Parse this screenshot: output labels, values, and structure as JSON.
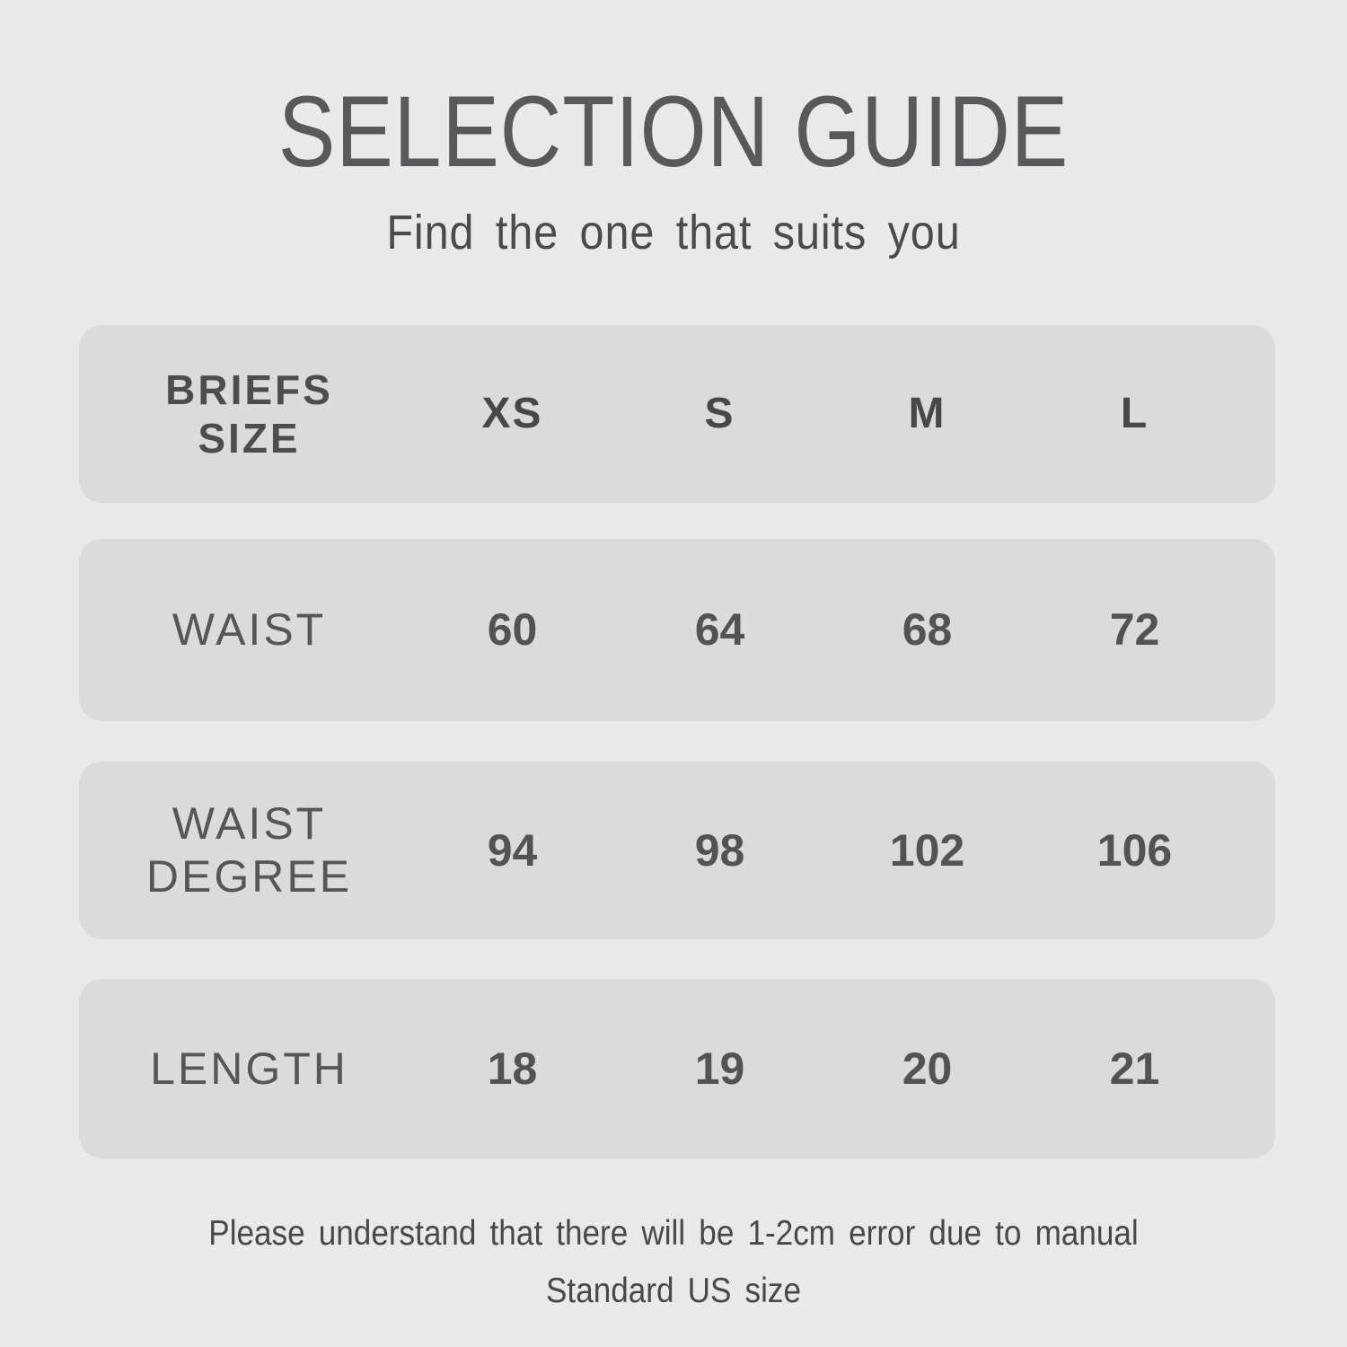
{
  "page": {
    "title": "SELECTION GUIDE",
    "subtitle": "Find the one that suits you",
    "note_error": "Please understand that there will be 1-2cm error due to manual",
    "note_standard": "Standard US size"
  },
  "table": {
    "header": {
      "label": "BRIEFS\nSIZE",
      "columns": [
        "XS",
        "S",
        "M",
        "L"
      ]
    },
    "rows": [
      {
        "label": "WAIST",
        "values": [
          "60",
          "64",
          "68",
          "72"
        ]
      },
      {
        "label": "WAIST\nDEGREE",
        "values": [
          "94",
          "98",
          "102",
          "106"
        ]
      },
      {
        "label": "LENGTH",
        "values": [
          "18",
          "19",
          "20",
          "21"
        ]
      }
    ]
  },
  "chart_data": {
    "type": "table",
    "title": "SELECTION GUIDE",
    "subtitle": "Find the one that suits you",
    "columns": [
      "BRIEFS SIZE",
      "XS",
      "S",
      "M",
      "L"
    ],
    "rows": [
      {
        "label": "WAIST",
        "values": [
          60,
          64,
          68,
          72
        ]
      },
      {
        "label": "WAIST DEGREE",
        "values": [
          94,
          98,
          102,
          106
        ]
      },
      {
        "label": "LENGTH",
        "values": [
          18,
          19,
          20,
          21
        ]
      }
    ],
    "notes": [
      "Please understand that there will be 1-2cm error due to manual",
      "Standard US size"
    ]
  },
  "colors": {
    "page_bg": "#e9e9ea",
    "row_bg": "#dbdbdc",
    "title_text": "#59595b",
    "body_text": "#4b4b4d",
    "value_text": "#535355"
  }
}
